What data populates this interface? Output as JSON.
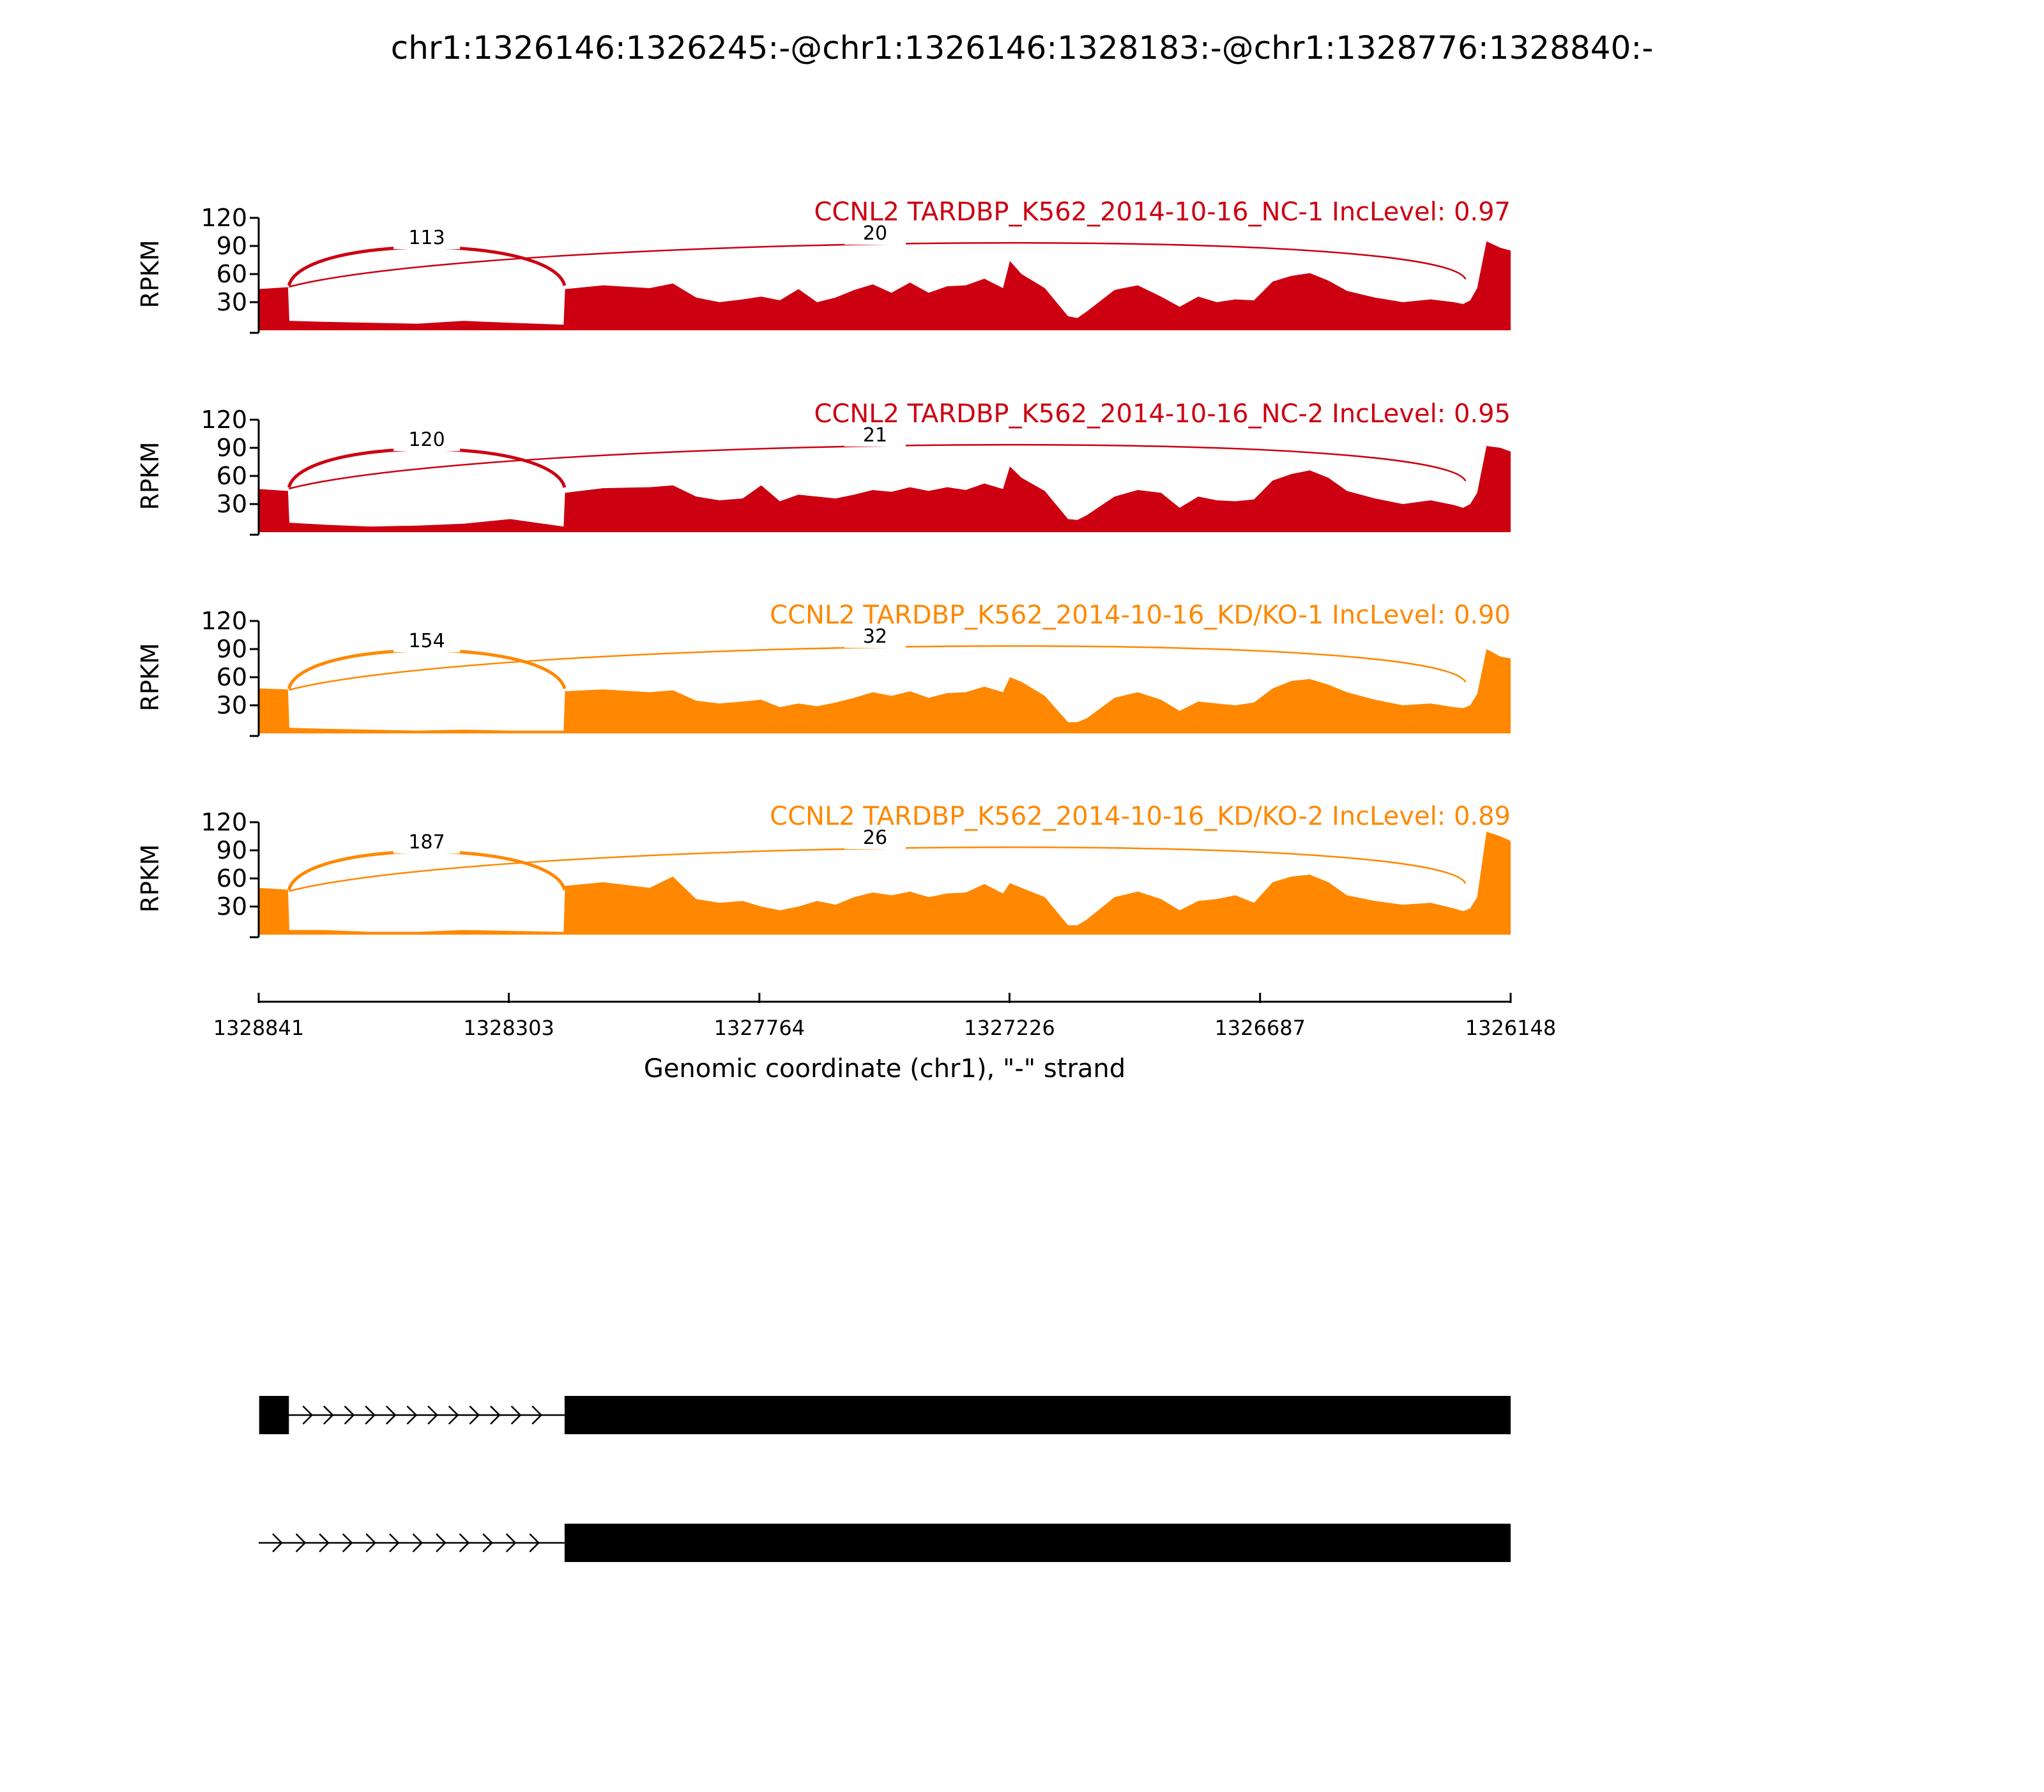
{
  "chart_data": {
    "type": "area",
    "title": "chr1:1326146:1326245:-@chr1:1326146:1328183:-@chr1:1328776:1328840:-",
    "xlabel": "Genomic coordinate (chr1), \"-\" strand",
    "ylabel": "RPKM",
    "x_ticks": [
      "1328841",
      "1328303",
      "1327764",
      "1327226",
      "1326687",
      "1326148"
    ],
    "xlim": [
      1328841,
      1326148
    ],
    "ylim": [
      0,
      120
    ],
    "y_ticks": [
      30,
      60,
      90,
      120
    ],
    "colors": {
      "nc": "#cc0011",
      "kd": "#ff8800",
      "gene": "#000000"
    },
    "series": [
      {
        "name": "CCNL2 TARDBP_K562_2014-10-16_NC-1 IncLevel: 0.97",
        "color": "#cc0011",
        "junctions": [
          {
            "from": 1328776,
            "to": 1328183,
            "count": "113"
          },
          {
            "from": 1328776,
            "to": 1326245,
            "count": "20"
          }
        ],
        "x": [
          1328841,
          1328778,
          1328775,
          1328700,
          1328600,
          1328500,
          1328400,
          1328300,
          1328185,
          1328182,
          1328100,
          1328000,
          1327950,
          1327900,
          1327850,
          1327800,
          1327760,
          1327720,
          1327680,
          1327640,
          1327600,
          1327560,
          1327520,
          1327480,
          1327440,
          1327400,
          1327360,
          1327320,
          1327280,
          1327240,
          1327225,
          1327200,
          1327150,
          1327100,
          1327080,
          1327060,
          1327000,
          1326950,
          1326900,
          1326860,
          1326820,
          1326780,
          1326740,
          1326700,
          1326660,
          1326620,
          1326580,
          1326540,
          1326500,
          1326440,
          1326380,
          1326320,
          1326270,
          1326250,
          1326235,
          1326220,
          1326200,
          1326170,
          1326148
        ],
        "values": [
          44,
          46,
          10,
          9,
          8,
          7,
          10,
          8,
          6,
          44,
          48,
          45,
          50,
          35,
          30,
          33,
          36,
          32,
          44,
          30,
          35,
          43,
          49,
          40,
          51,
          40,
          47,
          48,
          55,
          45,
          74,
          60,
          45,
          15,
          13,
          20,
          43,
          48,
          36,
          25,
          36,
          30,
          33,
          32,
          52,
          58,
          61,
          53,
          42,
          35,
          30,
          33,
          30,
          28,
          32,
          45,
          95,
          88,
          85
        ]
      },
      {
        "name": "CCNL2 TARDBP_K562_2014-10-16_NC-2 IncLevel: 0.95",
        "color": "#cc0011",
        "junctions": [
          {
            "from": 1328776,
            "to": 1328183,
            "count": "120"
          },
          {
            "from": 1328776,
            "to": 1326245,
            "count": "21"
          }
        ],
        "x": [
          1328841,
          1328778,
          1328775,
          1328700,
          1328600,
          1328500,
          1328400,
          1328300,
          1328185,
          1328182,
          1328100,
          1328000,
          1327950,
          1327900,
          1327850,
          1327800,
          1327760,
          1327720,
          1327680,
          1327640,
          1327600,
          1327560,
          1327520,
          1327480,
          1327440,
          1327400,
          1327360,
          1327320,
          1327280,
          1327240,
          1327225,
          1327200,
          1327150,
          1327100,
          1327080,
          1327060,
          1327000,
          1326950,
          1326900,
          1326860,
          1326820,
          1326780,
          1326740,
          1326700,
          1326660,
          1326620,
          1326580,
          1326540,
          1326500,
          1326440,
          1326380,
          1326320,
          1326270,
          1326250,
          1326235,
          1326220,
          1326200,
          1326170,
          1326148
        ],
        "values": [
          46,
          44,
          10,
          8,
          6,
          7,
          9,
          14,
          6,
          42,
          47,
          48,
          50,
          38,
          34,
          36,
          50,
          33,
          40,
          38,
          36,
          40,
          45,
          43,
          48,
          44,
          48,
          45,
          52,
          46,
          70,
          58,
          44,
          14,
          13,
          18,
          38,
          45,
          42,
          26,
          38,
          34,
          33,
          35,
          55,
          62,
          66,
          58,
          44,
          36,
          30,
          34,
          29,
          26,
          30,
          42,
          92,
          90,
          86
        ]
      },
      {
        "name": "CCNL2 TARDBP_K562_2014-10-16_KD/KO-1 IncLevel: 0.90",
        "color": "#ff8800",
        "junctions": [
          {
            "from": 1328776,
            "to": 1328183,
            "count": "154"
          },
          {
            "from": 1328776,
            "to": 1326245,
            "count": "32"
          }
        ],
        "x": [
          1328841,
          1328778,
          1328775,
          1328700,
          1328600,
          1328500,
          1328400,
          1328300,
          1328185,
          1328182,
          1328100,
          1328000,
          1327950,
          1327900,
          1327850,
          1327800,
          1327760,
          1327720,
          1327680,
          1327640,
          1327600,
          1327560,
          1327520,
          1327480,
          1327440,
          1327400,
          1327360,
          1327320,
          1327280,
          1327240,
          1327225,
          1327200,
          1327150,
          1327100,
          1327080,
          1327060,
          1327000,
          1326950,
          1326900,
          1326860,
          1326820,
          1326780,
          1326740,
          1326700,
          1326660,
          1326620,
          1326580,
          1326540,
          1326500,
          1326440,
          1326380,
          1326320,
          1326270,
          1326250,
          1326235,
          1326220,
          1326200,
          1326170,
          1326148
        ],
        "values": [
          48,
          47,
          6,
          5,
          4,
          3,
          4,
          3,
          3,
          45,
          47,
          44,
          46,
          35,
          32,
          34,
          36,
          28,
          32,
          29,
          33,
          38,
          44,
          40,
          45,
          38,
          43,
          44,
          50,
          44,
          60,
          55,
          40,
          12,
          12,
          16,
          38,
          44,
          36,
          24,
          34,
          32,
          30,
          33,
          48,
          56,
          58,
          52,
          44,
          36,
          30,
          32,
          28,
          27,
          30,
          42,
          90,
          82,
          80
        ]
      },
      {
        "name": "CCNL2 TARDBP_K562_2014-10-16_KD/KO-2 IncLevel: 0.89",
        "color": "#ff8800",
        "junctions": [
          {
            "from": 1328776,
            "to": 1328183,
            "count": "187"
          },
          {
            "from": 1328776,
            "to": 1326245,
            "count": "26"
          }
        ],
        "x": [
          1328841,
          1328778,
          1328775,
          1328700,
          1328600,
          1328500,
          1328400,
          1328300,
          1328185,
          1328182,
          1328100,
          1328000,
          1327950,
          1327900,
          1327850,
          1327800,
          1327760,
          1327720,
          1327680,
          1327640,
          1327600,
          1327560,
          1327520,
          1327480,
          1327440,
          1327400,
          1327360,
          1327320,
          1327280,
          1327240,
          1327225,
          1327200,
          1327150,
          1327100,
          1327080,
          1327060,
          1327000,
          1326950,
          1326900,
          1326860,
          1326820,
          1326780,
          1326740,
          1326700,
          1326660,
          1326620,
          1326580,
          1326540,
          1326500,
          1326440,
          1326380,
          1326320,
          1326270,
          1326250,
          1326235,
          1326220,
          1326200,
          1326170,
          1326148
        ],
        "values": [
          50,
          48,
          5,
          5,
          3,
          3,
          5,
          4,
          3,
          52,
          56,
          50,
          62,
          38,
          34,
          36,
          30,
          26,
          30,
          36,
          32,
          40,
          45,
          42,
          46,
          40,
          44,
          45,
          54,
          44,
          55,
          50,
          40,
          10,
          10,
          16,
          40,
          46,
          38,
          26,
          36,
          38,
          42,
          34,
          56,
          62,
          64,
          56,
          42,
          36,
          32,
          34,
          28,
          25,
          28,
          40,
          110,
          105,
          100
        ]
      }
    ],
    "gene_models": [
      {
        "exons": [
          [
            1328840,
            1328776
          ],
          [
            1328183,
            1326148
          ]
        ],
        "intron": [
          1328776,
          1328183
        ]
      },
      {
        "exons": [
          [
            1328183,
            1326148
          ]
        ],
        "intron": [
          1328841,
          1328183
        ]
      }
    ]
  }
}
